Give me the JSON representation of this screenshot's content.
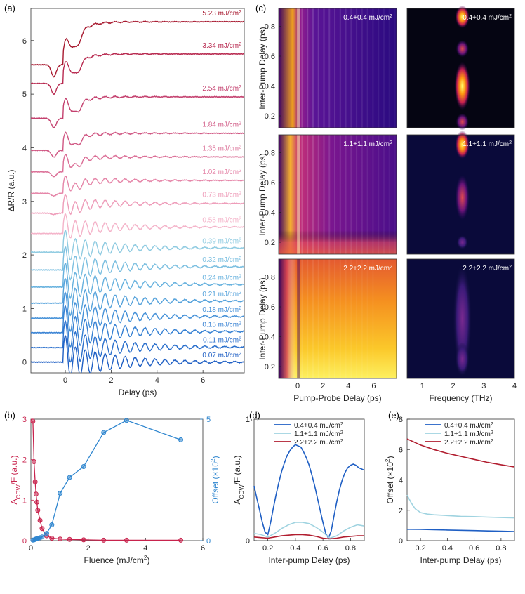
{
  "panel_labels": {
    "a": "(a)",
    "b": "(b)",
    "c": "(c)",
    "d": "(d)",
    "e": "(e)"
  },
  "chart_data": [
    {
      "id": "a",
      "type": "line",
      "title": "",
      "xlabel": "Delay (ps)",
      "ylabel": "ΔR/R (a.u.)",
      "xlim": [
        -1.5,
        7.8
      ],
      "ylim": [
        -0.2,
        6.6
      ],
      "xticks": [
        0,
        2,
        4,
        6
      ],
      "yticks": [
        0,
        1,
        2,
        3,
        4,
        5,
        6
      ],
      "series": [
        {
          "name": "0.07 mJ/cm2",
          "label": "0.07 mJ/cm",
          "sup": "2",
          "color": "#1f5fc4",
          "offset": 0.0,
          "amp": 0.36,
          "offset_level": 0.0,
          "dip": 0.0
        },
        {
          "name": "0.11 mJ/cm2",
          "label": "0.11 mJ/cm",
          "sup": "2",
          "color": "#2a6fcc",
          "offset": 0.27,
          "amp": 0.36,
          "offset_level": 0.01,
          "dip": 0.0
        },
        {
          "name": "0.15 mJ/cm2",
          "label": "0.15 mJ/cm",
          "sup": "2",
          "color": "#3580d3",
          "offset": 0.55,
          "amp": 0.36,
          "offset_level": 0.02,
          "dip": 0.0
        },
        {
          "name": "0.18 mJ/cm2",
          "label": "0.18 mJ/cm",
          "sup": "2",
          "color": "#4591d8",
          "offset": 0.82,
          "amp": 0.34,
          "offset_level": 0.03,
          "dip": 0.0
        },
        {
          "name": "0.21 mJ/cm2",
          "label": "0.21 mJ/cm",
          "sup": "2",
          "color": "#55a2db",
          "offset": 1.1,
          "amp": 0.32,
          "offset_level": 0.04,
          "dip": 0.0
        },
        {
          "name": "0.24 mJ/cm2",
          "label": "0.24 mJ/cm",
          "sup": "2",
          "color": "#66b1de",
          "offset": 1.4,
          "amp": 0.3,
          "offset_level": 0.05,
          "dip": 0.0
        },
        {
          "name": "0.32 mJ/cm2",
          "label": "0.32 mJ/cm",
          "sup": "2",
          "color": "#7bbfe0",
          "offset": 1.72,
          "amp": 0.28,
          "offset_level": 0.06,
          "dip": 0.0
        },
        {
          "name": "0.39 mJ/cm2",
          "label": "0.39 mJ/cm",
          "sup": "2",
          "color": "#8fcbe1",
          "offset": 2.05,
          "amp": 0.25,
          "offset_level": 0.08,
          "dip": 0.0
        },
        {
          "name": "0.55 mJ/cm2",
          "label": "0.55 mJ/cm",
          "sup": "2",
          "color": "#f4b3c9",
          "offset": 2.4,
          "amp": 0.2,
          "offset_level": 0.12,
          "dip": 0.0
        },
        {
          "name": "0.73 mJ/cm2",
          "label": "0.73 mJ/cm",
          "sup": "2",
          "color": "#ee9cb9",
          "offset": 2.78,
          "amp": 0.15,
          "offset_level": 0.18,
          "dip": 0.05
        },
        {
          "name": "1.02 mJ/cm2",
          "label": "1.02 mJ/cm",
          "sup": "2",
          "color": "#e585a8",
          "offset": 3.15,
          "amp": 0.1,
          "offset_level": 0.24,
          "dip": 0.1
        },
        {
          "name": "1.35 mJ/cm2",
          "label": "1.35 mJ/cm",
          "sup": "2",
          "color": "#db6e96",
          "offset": 3.55,
          "amp": 0.07,
          "offset_level": 0.28,
          "dip": 0.18
        },
        {
          "name": "1.84 mJ/cm2",
          "label": "1.84 mJ/cm",
          "sup": "2",
          "color": "#d05783",
          "offset": 3.95,
          "amp": 0.05,
          "offset_level": 0.32,
          "dip": 0.25
        },
        {
          "name": "2.54 mJ/cm2",
          "label": "2.54 mJ/cm",
          "sup": "2",
          "color": "#c4406e",
          "offset": 4.55,
          "amp": 0.04,
          "offset_level": 0.4,
          "dip": 0.35
        },
        {
          "name": "3.34 mJ/cm2",
          "label": "3.34 mJ/cm",
          "sup": "2",
          "color": "#b82a50",
          "offset": 5.2,
          "amp": 0.03,
          "offset_level": 0.55,
          "dip": 0.4
        },
        {
          "name": "5.23 mJ/cm2",
          "label": "5.23 mJ/cm",
          "sup": "2",
          "color": "#a81a30",
          "offset": 5.55,
          "amp": 0.03,
          "offset_level": 0.8,
          "dip": 0.45
        }
      ]
    },
    {
      "id": "b",
      "type": "scatter",
      "title": "",
      "xlabel": "Fluence (mJ/cm",
      "xlabel_sup": "2",
      "xlabel_tail": ")",
      "ylabel_left": "A",
      "ylabel_left_sub": "CDW",
      "ylabel_left_tail": "/F (a.u.)",
      "ylabel_right": "Offset (×10",
      "ylabel_right_sup": "2",
      "ylabel_right_tail": ")",
      "xlim": [
        0,
        6
      ],
      "xticks": [
        0,
        2,
        4,
        6
      ],
      "ylim_left": [
        0,
        3
      ],
      "yticks_left": [
        0,
        1,
        2,
        3
      ],
      "ylim_right": [
        0,
        5
      ],
      "yticks_right": [
        0,
        5
      ],
      "series": [
        {
          "name": "A_CDW/F",
          "axis": "left",
          "color": "#c8234d",
          "x": [
            0.07,
            0.11,
            0.15,
            0.18,
            0.21,
            0.24,
            0.32,
            0.39,
            0.55,
            0.73,
            1.02,
            1.35,
            1.84,
            2.54,
            3.34,
            5.23
          ],
          "y": [
            2.95,
            1.95,
            1.45,
            1.15,
            0.95,
            0.75,
            0.5,
            0.3,
            0.12,
            0.06,
            0.04,
            0.03,
            0.02,
            0.01,
            0.01,
            0.01
          ]
        },
        {
          "name": "Offset",
          "axis": "right",
          "color": "#2f86cf",
          "x": [
            0.07,
            0.11,
            0.15,
            0.18,
            0.21,
            0.24,
            0.32,
            0.39,
            0.55,
            0.73,
            1.02,
            1.35,
            1.84,
            2.54,
            3.34,
            5.23
          ],
          "y": [
            0.02,
            0.03,
            0.05,
            0.07,
            0.08,
            0.1,
            0.12,
            0.15,
            0.3,
            0.65,
            1.95,
            2.6,
            3.05,
            4.45,
            4.95,
            4.15
          ]
        }
      ]
    },
    {
      "id": "c",
      "type": "heatmap",
      "title": "",
      "ylabel": "Inter-Pump Delay (ps)",
      "xlabel_left": "Pump-Probe Delay (ps)",
      "xlabel_right": "Frequency (THz)",
      "ylim": [
        0.12,
        0.92
      ],
      "yticks": [
        0.2,
        0.4,
        0.6,
        0.8
      ],
      "xlim_left": [
        -1.5,
        7.8
      ],
      "xticks_left": [
        0,
        2,
        4,
        6
      ],
      "xlim_right": [
        0.5,
        4
      ],
      "xticks_right": [
        1,
        2,
        3,
        4
      ],
      "rows": [
        {
          "label": "0.4+0.4 mJ/cm",
          "sup": "2"
        },
        {
          "label": "1.1+1.1 mJ/cm",
          "sup": "2"
        },
        {
          "label": "2.2+2.2 mJ/cm",
          "sup": "2"
        }
      ]
    },
    {
      "id": "d",
      "type": "line",
      "title": "",
      "xlabel": "Inter-pump Delay (ps)",
      "ylabel": "A",
      "ylabel_sub": "CDW",
      "ylabel_tail": "/F (a.u.)",
      "xlim": [
        0.1,
        0.9
      ],
      "xticks": [
        0.2,
        0.4,
        0.6,
        0.8
      ],
      "ylim": [
        0,
        1
      ],
      "yticks": [
        0,
        1
      ],
      "legend": "top-right",
      "series": [
        {
          "name": "0.4+0.4 mJ/cm2",
          "label": "0.4+0.4 mJ/cm",
          "sup": "2",
          "color": "#1f5fc4",
          "x": [
            0.1,
            0.12,
            0.14,
            0.16,
            0.18,
            0.2,
            0.22,
            0.24,
            0.26,
            0.28,
            0.3,
            0.32,
            0.34,
            0.36,
            0.38,
            0.4,
            0.42,
            0.44,
            0.46,
            0.48,
            0.5,
            0.52,
            0.54,
            0.56,
            0.58,
            0.6,
            0.62,
            0.64,
            0.66,
            0.68,
            0.7,
            0.72,
            0.74,
            0.76,
            0.78,
            0.8,
            0.82,
            0.84,
            0.86,
            0.88,
            0.9
          ],
          "y": [
            0.45,
            0.35,
            0.25,
            0.15,
            0.07,
            0.05,
            0.15,
            0.27,
            0.38,
            0.48,
            0.57,
            0.64,
            0.7,
            0.74,
            0.77,
            0.79,
            0.78,
            0.77,
            0.73,
            0.68,
            0.62,
            0.54,
            0.45,
            0.35,
            0.25,
            0.15,
            0.06,
            0.02,
            0.08,
            0.2,
            0.32,
            0.42,
            0.5,
            0.56,
            0.6,
            0.62,
            0.63,
            0.62,
            0.6,
            0.59,
            0.58
          ]
        },
        {
          "name": "1.1+1.1 mJ/cm2",
          "label": "1.1+1.1 mJ/cm",
          "sup": "2",
          "color": "#9fd3e0",
          "x": [
            0.1,
            0.15,
            0.2,
            0.25,
            0.3,
            0.35,
            0.4,
            0.45,
            0.5,
            0.55,
            0.6,
            0.65,
            0.7,
            0.75,
            0.8,
            0.85,
            0.9
          ],
          "y": [
            0.06,
            0.05,
            0.03,
            0.06,
            0.1,
            0.13,
            0.15,
            0.15,
            0.14,
            0.11,
            0.07,
            0.02,
            0.04,
            0.08,
            0.11,
            0.13,
            0.12
          ]
        },
        {
          "name": "2.2+2.2 mJ/cm2",
          "label": "2.2+2.2 mJ/cm",
          "sup": "2",
          "color": "#b11d2f",
          "x": [
            0.1,
            0.15,
            0.2,
            0.25,
            0.3,
            0.35,
            0.4,
            0.45,
            0.5,
            0.55,
            0.6,
            0.65,
            0.7,
            0.75,
            0.8,
            0.85,
            0.9
          ],
          "y": [
            0.03,
            0.025,
            0.02,
            0.03,
            0.04,
            0.045,
            0.05,
            0.05,
            0.045,
            0.035,
            0.02,
            0.015,
            0.02,
            0.03,
            0.035,
            0.04,
            0.04
          ]
        }
      ]
    },
    {
      "id": "e",
      "type": "line",
      "title": "",
      "xlabel": "Inter-pump Delay (ps)",
      "ylabel": "Offset (×10",
      "ylabel_sup": "2",
      "ylabel_tail": ")",
      "xlim": [
        0.1,
        0.9
      ],
      "xticks": [
        0.2,
        0.4,
        0.6,
        0.8
      ],
      "ylim": [
        0,
        8
      ],
      "yticks": [
        0,
        2,
        4,
        6,
        8
      ],
      "legend": "top-right",
      "series": [
        {
          "name": "0.4+0.4 mJ/cm2",
          "label": "0.4+0.4 mJ/cm",
          "sup": "2",
          "color": "#1f5fc4",
          "x": [
            0.1,
            0.2,
            0.3,
            0.4,
            0.5,
            0.6,
            0.7,
            0.8,
            0.9
          ],
          "y": [
            0.75,
            0.74,
            0.72,
            0.7,
            0.68,
            0.66,
            0.64,
            0.62,
            0.6
          ]
        },
        {
          "name": "1.1+1.1 mJ/cm2",
          "label": "1.1+1.1 mJ/cm",
          "sup": "2",
          "color": "#9fd3e0",
          "x": [
            0.1,
            0.13,
            0.16,
            0.2,
            0.25,
            0.3,
            0.4,
            0.5,
            0.6,
            0.7,
            0.8,
            0.9
          ],
          "y": [
            3.0,
            2.5,
            2.1,
            1.85,
            1.75,
            1.7,
            1.65,
            1.6,
            1.58,
            1.55,
            1.52,
            1.5
          ]
        },
        {
          "name": "2.2+2.2 mJ/cm2",
          "label": "2.2+2.2 mJ/cm",
          "sup": "2",
          "color": "#b11d2f",
          "x": [
            0.1,
            0.2,
            0.3,
            0.4,
            0.5,
            0.6,
            0.7,
            0.8,
            0.9
          ],
          "y": [
            6.7,
            6.3,
            6.0,
            5.75,
            5.55,
            5.35,
            5.15,
            5.0,
            4.85
          ]
        }
      ]
    }
  ]
}
